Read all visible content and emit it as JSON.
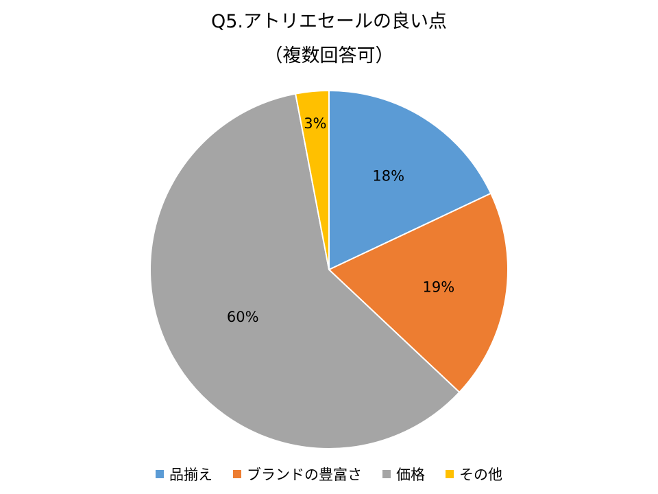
{
  "chart_data": {
    "type": "pie",
    "title": "Q5.アトリエセールの良い点",
    "subtitle": "（複数回答可）",
    "categories": [
      "品揃え",
      "ブランドの豊富さ",
      "価格",
      "その他"
    ],
    "values": [
      18,
      19,
      60,
      3
    ],
    "data_labels": [
      "18%",
      "19%",
      "60%",
      "3%"
    ],
    "colors": [
      "#5B9BD5",
      "#ED7D31",
      "#A5A5A5",
      "#FFC000"
    ],
    "legend_position": "bottom",
    "start_angle": "12 o'clock",
    "direction": "clockwise"
  }
}
